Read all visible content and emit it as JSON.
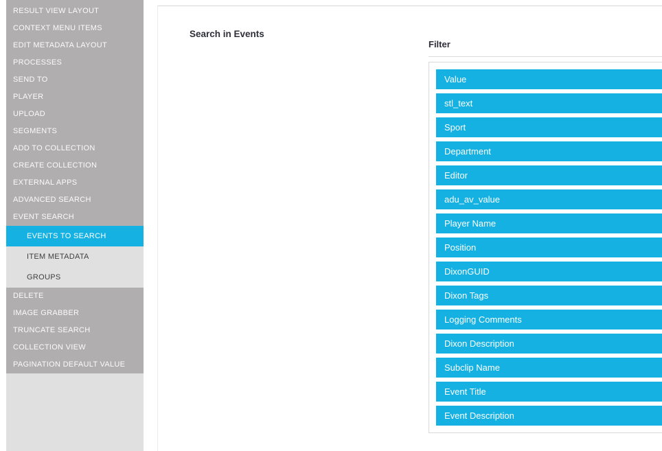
{
  "colors": {
    "accent_cyan": "#14b1e2",
    "sidebar_dark_gray": "#b0aeae",
    "sidebar_light_gray": "#e0e0e0",
    "border_gray": "#d9d9d9"
  },
  "sidebar": {
    "top_items": [
      "RESULT VIEW LAYOUT",
      "CONTEXT MENU ITEMS",
      "EDIT METADATA LAYOUT",
      "PROCESSES",
      "SEND TO",
      "PLAYER",
      "UPLOAD",
      "SEGMENTS",
      "ADD TO COLLECTION",
      "CREATE COLLECTION",
      "EXTERNAL APPS",
      "ADVANCED SEARCH",
      "EVENT SEARCH"
    ],
    "sub_items": [
      {
        "label": "EVENTS TO SEARCH",
        "selected": true
      },
      {
        "label": "ITEM METADATA",
        "selected": false
      },
      {
        "label": "GROUPS",
        "selected": false
      }
    ],
    "bottom_items": [
      "DELETE",
      "IMAGE GRABBER",
      "TRUNCATE SEARCH",
      "COLLECTION VIEW",
      "PAGINATION DEFAULT VALUE"
    ]
  },
  "main": {
    "section_title": "Search in Events",
    "filter": {
      "label": "Filter",
      "options": [
        "Value",
        "stl_text",
        "Sport",
        "Department",
        "Editor",
        "adu_av_value",
        "Player Name",
        "Position",
        "DixonGUID",
        "Dixon Tags",
        "Logging Comments",
        "Dixon Description",
        "Subclip Name",
        "Event Title",
        "Event Description"
      ]
    }
  }
}
